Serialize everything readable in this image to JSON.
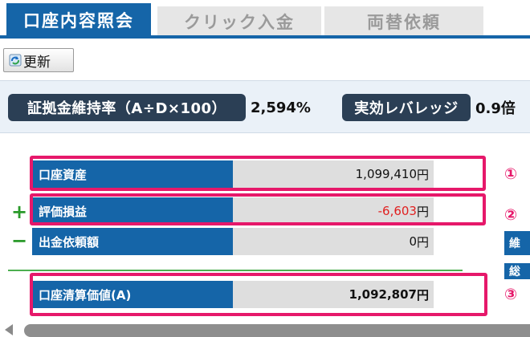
{
  "tabs": [
    {
      "label": "口座内容照会",
      "active": true
    },
    {
      "label": "クリック入金",
      "active": false
    },
    {
      "label": "両替依頼",
      "active": false
    }
  ],
  "toolbar": {
    "refresh_label": "更新",
    "refresh_icon": "refresh-icon"
  },
  "margin_rate": {
    "label": "証拠金維持率（A÷D×100）",
    "value": "2,594%",
    "leverage_label": "実効レバレッジ",
    "leverage_value": "0.9倍"
  },
  "account": {
    "rows": [
      {
        "label": "口座資産",
        "value": "1,099,410",
        "unit": "円"
      },
      {
        "label": "評価損益",
        "value": "-6,603",
        "unit": "円"
      },
      {
        "label": "出金依頼額",
        "value": "0",
        "unit": "円"
      },
      {
        "label": "口座清算価値(A)",
        "value": "1,092,807",
        "unit": "円"
      }
    ],
    "plus_sign": "+",
    "minus_sign": "−"
  },
  "annotations": [
    "①",
    "②",
    "③"
  ],
  "side_column": [
    "維",
    "総"
  ],
  "colors": {
    "primary": "#1565a8",
    "highlight": "#e6186a",
    "negative": "#e01f1f",
    "sign": "#2a9a2a"
  }
}
